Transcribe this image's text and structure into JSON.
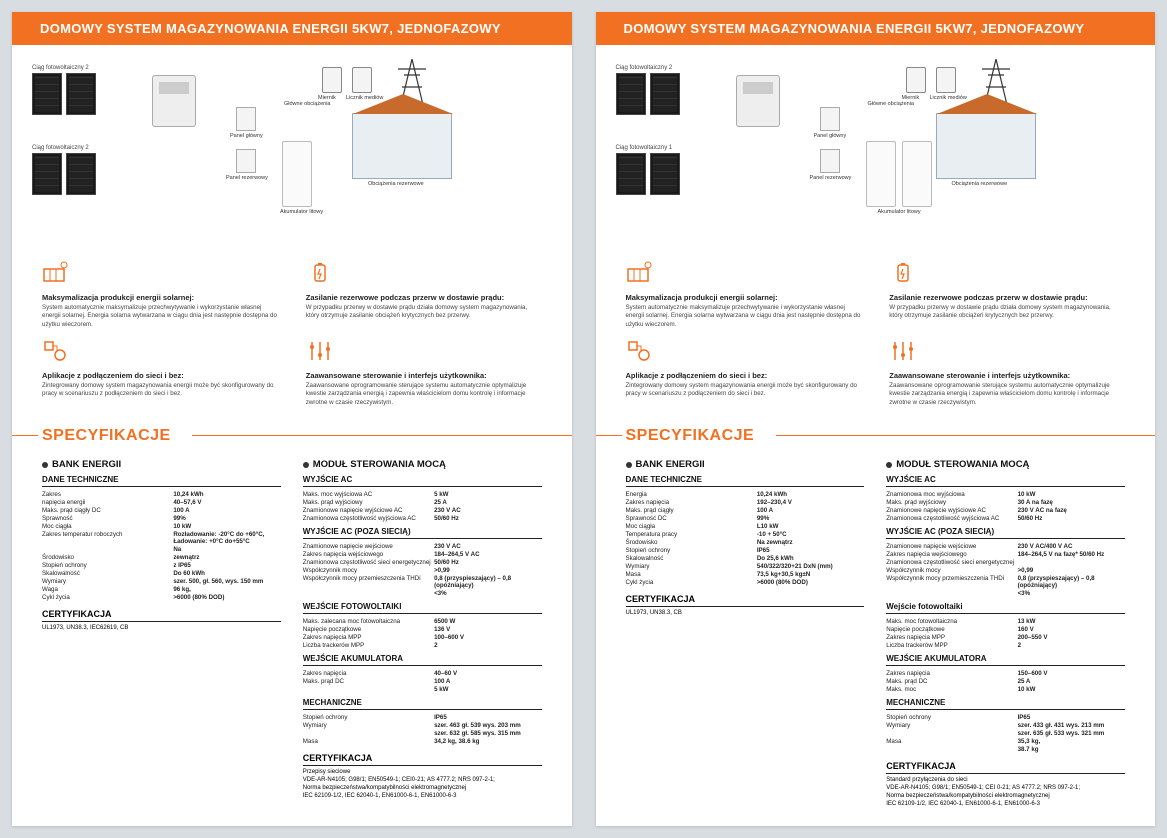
{
  "colors": {
    "accent": "#f27021",
    "text": "#222222",
    "page_bg": "#ffffff",
    "outer_bg": "#d8dde2"
  },
  "header": {
    "title": "DOMOWY SYSTEM MAGAZYNOWANIA ENERGII 5KW7, JEDNOFAZOWY"
  },
  "diagram": {
    "pv1_label": "Ciąg fotowoltaiczny 2",
    "pv2_label": "Ciąg fotowoltaiczny 2",
    "pv2_label_b": "Ciąg fotowoltaiczny 1",
    "meter_label": "Miernik",
    "utility_meter_label": "Licznik mediów",
    "main_panel_label": "Panel główny",
    "backup_panel_label": "Panel rezerwowy",
    "main_load_label": "Główne obciążenia",
    "backup_load_label": "Obciążenia rezerwowe",
    "battery_label": "Akumulator litowy"
  },
  "features": [
    {
      "title": "Maksymalizacja produkcji energii solarnej:",
      "text": "System automatycznie maksymalizuje przechwytywanie i wykorzystanie własnej energii solarnej. Energia solarna wytwarzana w ciągu dnia jest następnie dostępna do użytku wieczorem."
    },
    {
      "title": "Zasilanie rezerwowe podczas przerw w dostawie prądu:",
      "text": "W przypadku przerwy w dostawie prądu działa domowy system magazynowania, który otrzymuje zasilanie obciążeń krytycznych bez przerwy."
    },
    {
      "title": "Aplikacje z podłączeniem do sieci i bez:",
      "text": "Zintegrowany domowy system magazynowania energii może być skonfigurowany do pracy w scenariuszu z podłączeniem do sieci i bez."
    },
    {
      "title": "Zaawansowane sterowanie i interfejs użytkownika:",
      "text": "Zaawansowane oprogramowanie sterujące systemu automatycznie optymalizuje kwestie zarządzania energią i zapewnia właścicielom domu kontrolę i informacje zwrotne w czasie rzeczywistym."
    }
  ],
  "spec_heading": "SPECYFIKACJE",
  "page1": {
    "left": {
      "bank_title": "BANK ENERGII",
      "tech_title": "DANE TECHNICZNE",
      "rows": [
        {
          "k": "Zakres",
          "v": "10,24 kWh"
        },
        {
          "k": "napięcia energii",
          "v": "40–57,6 V"
        },
        {
          "k": "Maks. prąd ciągły DC",
          "v": "100 A"
        },
        {
          "k": "Sprawność",
          "v": "99%"
        },
        {
          "k": "Moc ciągła",
          "v": "10 kW"
        },
        {
          "k": "Zakres temperatur roboczych",
          "v": "Rozładowanie: -20°C do +60°C, Ładowanie: +0°C do+55°C"
        },
        {
          "k": "",
          "v": "Na"
        },
        {
          "k": "Środowisko",
          "v": "zewnątrz"
        },
        {
          "k": "Stopień ochrony",
          "v": "z IP65"
        },
        {
          "k": "Skalowalność",
          "v": "Do 60 kWh"
        },
        {
          "k": "Wymiary",
          "v": "szer. 500, gł. 560, wys. 150 mm"
        },
        {
          "k": "Waga",
          "v": "96 kg,"
        },
        {
          "k": "Cykl życia",
          "v": ">6000 (80% DOD)"
        }
      ],
      "cert_title": "CERTYFIKACJA",
      "cert_text": "UL1973, UN38.3, IEC62619, CB"
    },
    "right": {
      "mod_title": "MODUŁ STEROWANIA MOCĄ",
      "sections": [
        {
          "title": "WYJŚCIE AC",
          "rows": [
            {
              "k": "Maks. moc wyjściowa AC",
              "v": "5 kW"
            },
            {
              "k": "Maks. prąd wyjściowy",
              "v": "25 A"
            },
            {
              "k": "Znamionowe napięcie wyjściowe AC",
              "v": "230 V AC"
            },
            {
              "k": "Znamionowa częstotliwość wyjściowa AC",
              "v": "50/60 Hz"
            }
          ]
        },
        {
          "title": "WYJŚCIE AC (POZA SIECIĄ)",
          "rows": [
            {
              "k": "Znamionowe napięcie wejściowe",
              "v": "230 V AC"
            },
            {
              "k": "Zakres napięcia wejściowego",
              "v": "184–264,5 V AC"
            },
            {
              "k": "Znamionowa częstotliwość sieci energetycznej",
              "v": "50/60 Hz"
            },
            {
              "k": "Współczynnik mocy",
              "v": ">0,99"
            },
            {
              "k": "Współczynnik mocy przemieszczenia THDi",
              "v": "0,8 (przyspieszający) – 0,8 (opóźniający)"
            },
            {
              "k": "",
              "v": "<3%"
            }
          ]
        },
        {
          "title": "WEJŚCIE FOTOWOLTAIKI",
          "rows": [
            {
              "k": "Maks. zalecana moc fotowoltaiczna",
              "v": "6500 W"
            },
            {
              "k": "Napięcie początkowe",
              "v": "136 V"
            },
            {
              "k": "Zakres napięcia MPP",
              "v": "100–600 V"
            },
            {
              "k": "Liczba trackerów MPP",
              "v": "2"
            }
          ]
        },
        {
          "title": "WEJŚCIE AKUMULATORA",
          "rows": [
            {
              "k": "Zakres napięcia",
              "v": "40–60 V"
            },
            {
              "k": "Maks. prąd DC",
              "v": "100 A"
            },
            {
              "k": "",
              "v": "5 kW"
            }
          ]
        },
        {
          "title": "MECHANICZNE",
          "rows": [
            {
              "k": "Stopień ochrony",
              "v": "IP65"
            },
            {
              "k": "Wymiary",
              "v": "szer. 463 gł. 539 wys. 203 mm"
            },
            {
              "k": "",
              "v": "szer. 632 gł. 585 wys. 315 mm"
            },
            {
              "k": "Masa",
              "v": "34,2 kg, 38.6 kg"
            }
          ]
        }
      ],
      "cert_title": "CERTYFIKACJA",
      "cert_lines": [
        "Przepisy sieciowe",
        "VDE-AR-N4105; G98/1; EN50549-1; CEI0-21; AS 4777.2; NRS 097-2-1;",
        "Norma bezpieczeństwa/kompatybilności elektromagnetycznej",
        "IEC 62109-1/2, IEC 62040-1, EN61000-6-1, EN61000-6-3"
      ]
    }
  },
  "page2": {
    "left": {
      "bank_title": "BANK ENERGII",
      "tech_title": "DANE TECHNICZNE",
      "rows": [
        {
          "k": "Energia",
          "v": "10,24 kWh"
        },
        {
          "k": "Zakres napięcia",
          "v": "192–230,4 V"
        },
        {
          "k": "Maks. prąd ciągły",
          "v": "100 A"
        },
        {
          "k": "Sprawność DC",
          "v": "99%"
        },
        {
          "k": "Moc ciągła",
          "v": "L10 kW"
        },
        {
          "k": "Temperatura pracy",
          "v": "-10 + 50°C"
        },
        {
          "k": "Środowisko",
          "v": "Na zewnątrz"
        },
        {
          "k": "Stopień ochrony",
          "v": "IP65"
        },
        {
          "k": "Skalowalność",
          "v": "Do 25,6 kWh"
        },
        {
          "k": "Wymiary",
          "v": "540/322/320+21 DxN (mm)"
        },
        {
          "k": "Masa",
          "v": "73,5 kg+30,5 kg±N"
        },
        {
          "k": "Cykl życia",
          "v": ">6000 (80% DOD)"
        }
      ],
      "cert_title": "CERTYFIKACJA",
      "cert_text": "UL1973, UN38.3, CB"
    },
    "right": {
      "mod_title": "MODUŁ STEROWANIA MOCĄ",
      "sections": [
        {
          "title": "WYJŚCIE AC",
          "rows": [
            {
              "k": "Znamionowa moc wyjściowa",
              "v": "10 kW"
            },
            {
              "k": "Maks. prąd wyjściowy",
              "v": "30 A na fazę"
            },
            {
              "k": "Znamionowe napięcie wyjściowe AC",
              "v": "230 V AC na fazę"
            },
            {
              "k": "Znamionowa częstotliwość wyjściowa AC",
              "v": "50/60 Hz"
            }
          ]
        },
        {
          "title": "WYJŚCIE AC (POZA SIECIĄ)",
          "rows": [
            {
              "k": "Znamionowe napięcie wejściowe",
              "v": "230 V AC/400 V AC"
            },
            {
              "k": "Zakres napięcia wejściowego",
              "v": "184–264,5 V na fazę* 50/60 Hz"
            },
            {
              "k": "Znamionowa częstotliwość sieci energetycznej",
              "v": ""
            },
            {
              "k": "Współczynnik mocy",
              "v": ">0,99"
            },
            {
              "k": "Współczynnik mocy przemieszczenia THDi",
              "v": "0,8 (przyspieszający) – 0,8 (opóźniający)"
            },
            {
              "k": "",
              "v": "<3%"
            }
          ]
        },
        {
          "title": "Wejście fotowoltaiki",
          "rows": [
            {
              "k": "Maks. moc fotowoltaiczna",
              "v": "13 kW"
            },
            {
              "k": "Napięcie początkowe",
              "v": "160 V"
            },
            {
              "k": "Zakres napięcia MPP",
              "v": "200–550 V"
            },
            {
              "k": "Liczba trackerów MPP",
              "v": "2"
            }
          ]
        },
        {
          "title": "WEJŚCIE AKUMULATORA",
          "rows": [
            {
              "k": "Zakres napięcia",
              "v": "150–600 V"
            },
            {
              "k": "Maks. prąd DC",
              "v": "25 A"
            },
            {
              "k": "Maks. moc",
              "v": "10 kW"
            }
          ]
        },
        {
          "title": "MECHANICZNE",
          "rows": [
            {
              "k": "Stopień ochrony",
              "v": "IP65"
            },
            {
              "k": "Wymiary",
              "v": "szer. 433 gł. 431 wys. 213 mm"
            },
            {
              "k": "",
              "v": "szer. 635 gł. 533 wys. 321 mm"
            },
            {
              "k": "Masa",
              "v": "35,3 kg,"
            },
            {
              "k": "",
              "v": "38.7 kg"
            }
          ]
        }
      ],
      "cert_title": "CERTYFIKACJA",
      "cert_lines": [
        "Standard przyłączenia do sieci",
        "VDE-AR-N4105; G98/1; EN50549-1; CEI 0-21; AS 4777.2; NRS 097-2-1;",
        "Norma bezpieczeństwa/kompatybilności elektromagnetycznej",
        "IEC 62109-1/2, IEC 62040-1, EN61000-6-1, EN61000-6-3"
      ]
    }
  }
}
